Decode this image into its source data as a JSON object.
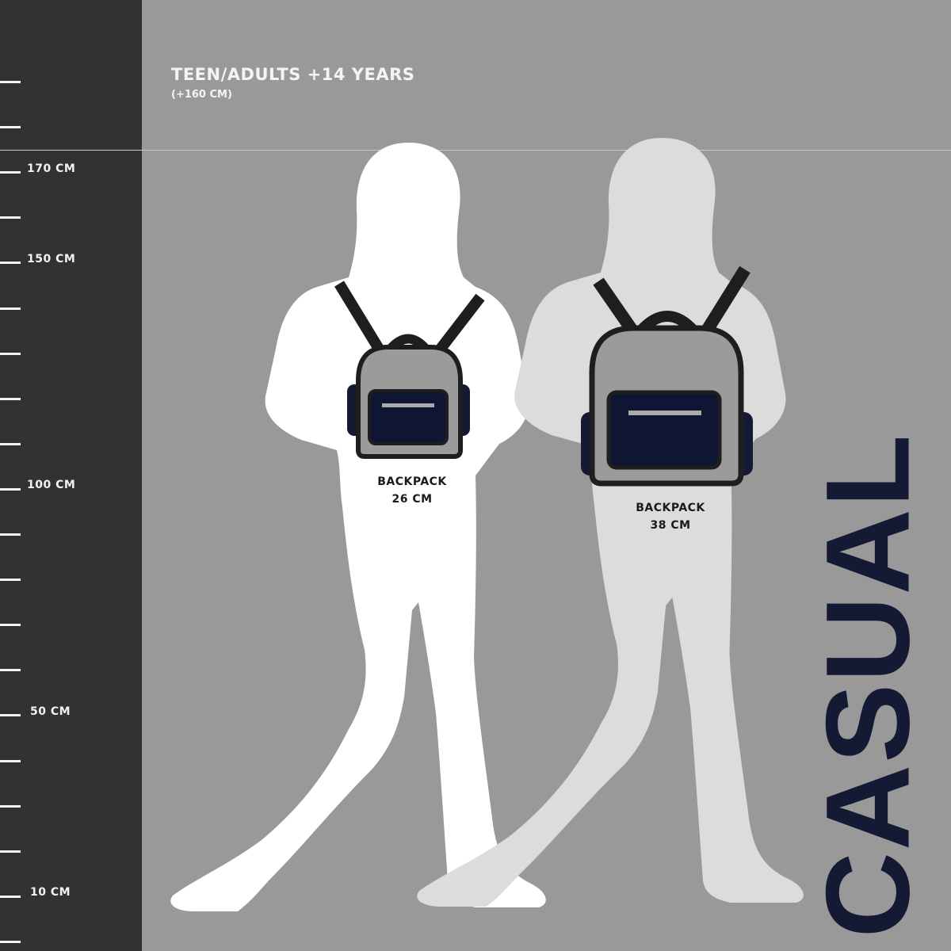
{
  "header": {
    "title": "TEEN/ADULTS +14 YEARS",
    "subtitle": "(+160 CM)"
  },
  "ruler": {
    "labels": {
      "170": "170 CM",
      "150": "150 CM",
      "100": "100 CM",
      "50": "50 CM",
      "10": "10 CM"
    }
  },
  "backpacks": [
    {
      "label": "BACKPACK",
      "size": "26 CM"
    },
    {
      "label": "BACKPACK",
      "size": "38 CM"
    }
  ],
  "brand_text": "CASUAL",
  "colors": {
    "background": "#999999",
    "ruler": "#323232",
    "navy": "#141a33",
    "figure_left": "#ffffff",
    "figure_right": "#dcdcdc"
  }
}
